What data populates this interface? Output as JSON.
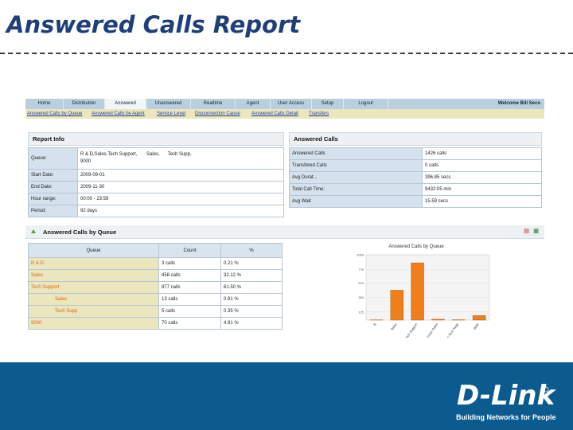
{
  "slide": {
    "title": "Answered Calls Report"
  },
  "nav": {
    "tabs": [
      "Home",
      "Distribution",
      "Answered",
      "Unanswered",
      "Realtime",
      "Agent",
      "User Access",
      "Setup",
      "Logout"
    ],
    "active": "Answered",
    "welcome": "Welcome Bill Seco"
  },
  "subnav": {
    "links": [
      "Answered Calls by Queue",
      "Answered Calls by Agent",
      "Service Level",
      "Disconnection Cause",
      "Answered Calls Detail",
      "Transfers"
    ]
  },
  "report_info": {
    "title": "Report Info",
    "rows": [
      {
        "label": "Queue:",
        "value": "R & D,Sales,Tech Support,       Sales,      Tech Supp,\n9000"
      },
      {
        "label": "Start Date:",
        "value": "2009-09-01"
      },
      {
        "label": "End Date:",
        "value": "2009-11-30"
      },
      {
        "label": "Hour range:",
        "value": "00:00 - 23:59"
      },
      {
        "label": "Period:",
        "value": "92 days"
      }
    ]
  },
  "answered_calls": {
    "title": "Answered Calls",
    "rows": [
      {
        "label": "Answered Calls",
        "value": "1426 calls"
      },
      {
        "label": "Transfered Calls",
        "value": "0 calls"
      },
      {
        "label": "Avg Durat...",
        "value": "396.85 secs"
      },
      {
        "label": "Total Call Time:",
        "value": "9432:05 min"
      },
      {
        "label": "Avg Wait",
        "value": "15.59 secs"
      }
    ]
  },
  "by_queue": {
    "title": "Answered Calls by Queue",
    "icons": [
      "pdf-icon",
      "excel-icon"
    ],
    "columns": [
      "Queue",
      "Count",
      "%"
    ],
    "rows": [
      {
        "queue": "R & D",
        "count": "3 calls",
        "pct": "0.21 %"
      },
      {
        "queue": "Sales",
        "count": "458 calls",
        "pct": "32.12 %"
      },
      {
        "queue": "Tech Support",
        "count": "877 calls",
        "pct": "61.50 %"
      },
      {
        "queue": "Sales",
        "count": "13 calls",
        "pct": "0.91 %",
        "sub": true
      },
      {
        "queue": "Tech Supp",
        "count": "5 calls",
        "pct": "0.35 %",
        "sub": true
      },
      {
        "queue": "9000",
        "count": "70 calls",
        "pct": "4.91 %"
      }
    ]
  },
  "chart_data": {
    "type": "bar",
    "title": "Answered Calls by Queue",
    "categories": [
      "R",
      "Sales",
      "Tech Support",
      "Unknown Sales",
      "Pansin Tech Supp",
      "9000"
    ],
    "values": [
      3,
      458,
      877,
      13,
      5,
      70
    ],
    "ylim": [
      0,
      1000
    ],
    "yticks": [
      "1000",
      "775",
      "570",
      "350",
      "125"
    ],
    "bar_color": "#ef7f1a",
    "grid": true
  },
  "footer": {
    "brand": "D-Link",
    "tagline": "Building Networks for People",
    "band_color": "#0b5b8e"
  }
}
